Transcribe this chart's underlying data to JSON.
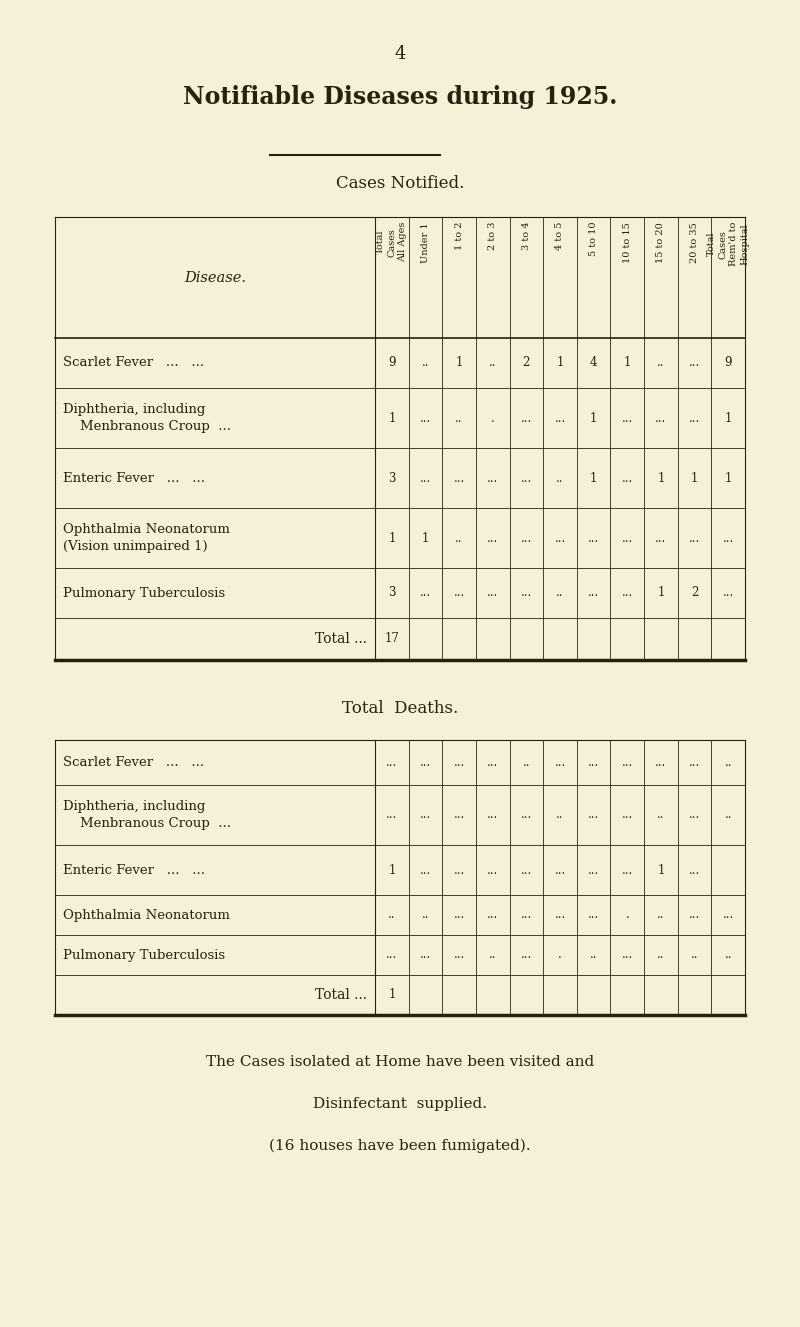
{
  "bg_color": "#f5f0d8",
  "text_color": "#2a2010",
  "page_number": "4",
  "main_title": "Notifiable Diseases during 1925.",
  "section1_title": "Cases Notified.",
  "section2_title": "Total Deaths.",
  "col_headers": [
    "Total\nCases\nAll Ages",
    "Under 1",
    "1 to 2",
    "2 to 3",
    "3 to 4",
    "4 to 5",
    "5 to 10",
    "10 to 15",
    "15 to 20",
    "20 to 35",
    "Total\nCases\nRem'd to\nHospital"
  ],
  "notified_diseases": [
    [
      "Scarlet Fever   ...   ...",
      false
    ],
    [
      "Diphtheria, including\n    Menbranous Croup  ...",
      false
    ],
    [
      "Enteric Fever   ...   ...",
      false
    ],
    [
      "Ophthalmia Neonatorum\n(Vision unimpaired 1)",
      false
    ],
    [
      "Pulmonary Tuberculosis",
      false
    ],
    [
      "Total ...",
      true
    ]
  ],
  "notified_data": [
    [
      "9",
      "..",
      "1",
      "..",
      "2",
      "1",
      "4",
      "1",
      "..",
      "...",
      "9"
    ],
    [
      "1",
      "...",
      "..",
      ".",
      "...",
      "...",
      "1",
      "...",
      "...",
      "...",
      "1"
    ],
    [
      "3",
      "...",
      "...",
      "...",
      "...",
      "..",
      "1",
      "...",
      "1",
      "1",
      "1"
    ],
    [
      "1",
      "1",
      "..",
      "...",
      "...",
      "...",
      "...",
      "...",
      "...",
      "...",
      "..."
    ],
    [
      "3",
      "...",
      "...",
      "...",
      "...",
      "..",
      "...",
      "...",
      "1",
      "2",
      "..."
    ],
    [
      "17",
      "",
      "",
      "",
      "",
      "",
      "",
      "",
      "",
      "",
      ""
    ]
  ],
  "deaths_diseases": [
    [
      "Scarlet Fever   ...   ...",
      false
    ],
    [
      "Diphtheria, including\n    Menbranous Croup  ...",
      false
    ],
    [
      "Enteric Fever   ...   ...",
      false
    ],
    [
      "Ophthalmia Neonatorum",
      false
    ],
    [
      "Pulmonary Tuberculosis",
      false
    ],
    [
      "Total ...",
      true
    ]
  ],
  "deaths_data": [
    [
      "...",
      "...",
      "...",
      "...",
      "..",
      "...",
      "...",
      "...",
      "...",
      "...",
      ".."
    ],
    [
      "...",
      "...",
      "...",
      "...",
      "...",
      "..",
      "...",
      "...",
      "..",
      "...",
      ".."
    ],
    [
      "1",
      "...",
      "...",
      "...",
      "...",
      "...",
      "...",
      "...",
      "1",
      "...",
      ""
    ],
    [
      "..",
      "..",
      "...",
      "...",
      "...",
      "...",
      "...",
      ".",
      "..",
      "...",
      "..."
    ],
    [
      "...",
      "...",
      "...",
      "..",
      "...",
      ".",
      "..",
      "...",
      "..",
      "..",
      ".."
    ],
    [
      "1",
      "",
      "",
      "",
      "",
      "",
      "",
      "",
      "",
      "",
      ""
    ]
  ],
  "footer_line1": "The Cases isolated at Home have been visited and",
  "footer_line2": "Disinfectant  supplied.",
  "footer_line3": "(16 houses have been fumigated)."
}
